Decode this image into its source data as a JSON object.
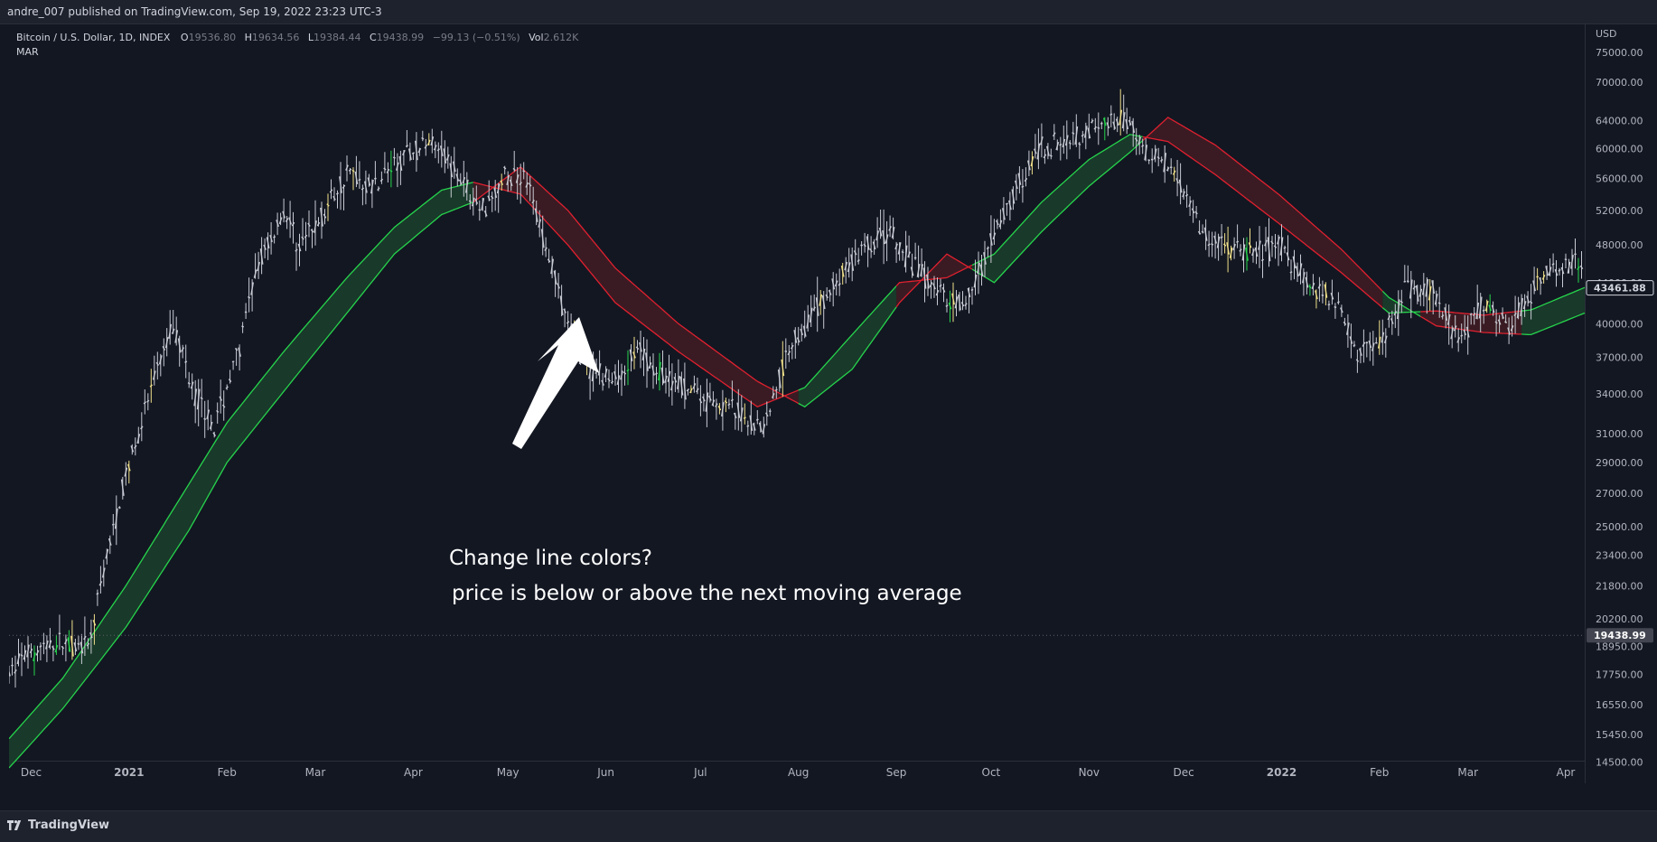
{
  "header": {
    "published": "andre_007 published on TradingView.com, Sep 19, 2022 23:23 UTC-3"
  },
  "legend": {
    "symbol": "Bitcoin / U.S. Dollar, 1D, INDEX",
    "open_label": "O",
    "open": "19536.80",
    "high_label": "H",
    "high": "19634.56",
    "low_label": "L",
    "low": "19384.44",
    "close_label": "C",
    "close": "19438.99",
    "change": "−99.13 (−0.51%)",
    "vol_label": "Vol",
    "vol": "2.612K",
    "indicator": "MAR"
  },
  "annotation": {
    "line1": "Change line colors?",
    "line2": "price is below or above the next moving average"
  },
  "footer": {
    "brand": "TradingView"
  },
  "colors": {
    "bull": "#26d44c",
    "bear": "#e0202f",
    "bull_fill": "#1b3d2b",
    "bear_fill": "#3f1c24",
    "candle": "#c8cbd3",
    "highlight": "#f0e08a",
    "bg": "#131722"
  },
  "chart_data": {
    "type": "line",
    "scale": "log",
    "currency": "USD",
    "last_price": "19438.99",
    "ma_price": "43461.88",
    "y_ticks": [
      "75000.00",
      "70000.00",
      "64000.00",
      "60000.00",
      "56000.00",
      "52000.00",
      "48000.00",
      "44000.00",
      "40000.00",
      "37000.00",
      "34000.00",
      "31000.00",
      "29000.00",
      "27000.00",
      "25000.00",
      "23400.00",
      "21800.00",
      "20200.00",
      "18950.00",
      "17750.00",
      "16550.00",
      "15450.00",
      "14500.00"
    ],
    "x_ticks": [
      "Dec",
      "2021",
      "Feb",
      "Mar",
      "Apr",
      "May",
      "Jun",
      "Jul",
      "Aug",
      "Sep",
      "Oct",
      "Nov",
      "Dec",
      "2022",
      "Feb",
      "Mar",
      "Apr"
    ],
    "x_tick_positions_days": [
      0,
      31,
      62,
      90,
      121,
      151,
      182,
      212,
      243,
      274,
      304,
      335,
      365,
      396,
      427,
      455,
      486
    ],
    "x_range_days": [
      -7,
      492
    ],
    "y_range": [
      13800,
      80000
    ],
    "price_path": [
      {
        "d": -7,
        "p": 17800
      },
      {
        "d": 0,
        "p": 18800
      },
      {
        "d": 10,
        "p": 19100
      },
      {
        "d": 18,
        "p": 18800
      },
      {
        "d": 24,
        "p": 23400
      },
      {
        "d": 31,
        "p": 29000
      },
      {
        "d": 40,
        "p": 36000
      },
      {
        "d": 45,
        "p": 40000
      },
      {
        "d": 52,
        "p": 34000
      },
      {
        "d": 58,
        "p": 31500
      },
      {
        "d": 66,
        "p": 38000
      },
      {
        "d": 72,
        "p": 46000
      },
      {
        "d": 80,
        "p": 52000
      },
      {
        "d": 85,
        "p": 48000
      },
      {
        "d": 90,
        "p": 50000
      },
      {
        "d": 100,
        "p": 57000
      },
      {
        "d": 108,
        "p": 55000
      },
      {
        "d": 118,
        "p": 59000
      },
      {
        "d": 128,
        "p": 61500
      },
      {
        "d": 135,
        "p": 56500
      },
      {
        "d": 142,
        "p": 52000
      },
      {
        "d": 150,
        "p": 56000
      },
      {
        "d": 156,
        "p": 57000
      },
      {
        "d": 162,
        "p": 49000
      },
      {
        "d": 170,
        "p": 40000
      },
      {
        "d": 176,
        "p": 36000
      },
      {
        "d": 184,
        "p": 35000
      },
      {
        "d": 192,
        "p": 37500
      },
      {
        "d": 200,
        "p": 35500
      },
      {
        "d": 210,
        "p": 34000
      },
      {
        "d": 220,
        "p": 33000
      },
      {
        "d": 232,
        "p": 31500
      },
      {
        "d": 240,
        "p": 38000
      },
      {
        "d": 250,
        "p": 42000
      },
      {
        "d": 262,
        "p": 47000
      },
      {
        "d": 272,
        "p": 49500
      },
      {
        "d": 278,
        "p": 46000
      },
      {
        "d": 288,
        "p": 43000
      },
      {
        "d": 296,
        "p": 42000
      },
      {
        "d": 304,
        "p": 48000
      },
      {
        "d": 312,
        "p": 55000
      },
      {
        "d": 320,
        "p": 60000
      },
      {
        "d": 330,
        "p": 62000
      },
      {
        "d": 340,
        "p": 63000
      },
      {
        "d": 348,
        "p": 64500
      },
      {
        "d": 352,
        "p": 60000
      },
      {
        "d": 362,
        "p": 57000
      },
      {
        "d": 372,
        "p": 49000
      },
      {
        "d": 384,
        "p": 47000
      },
      {
        "d": 396,
        "p": 48000
      },
      {
        "d": 404,
        "p": 44000
      },
      {
        "d": 414,
        "p": 42000
      },
      {
        "d": 420,
        "p": 37500
      },
      {
        "d": 428,
        "p": 38500
      },
      {
        "d": 436,
        "p": 43500
      },
      {
        "d": 444,
        "p": 43000
      },
      {
        "d": 452,
        "p": 38500
      },
      {
        "d": 460,
        "p": 42000
      },
      {
        "d": 468,
        "p": 39500
      },
      {
        "d": 476,
        "p": 43500
      },
      {
        "d": 484,
        "p": 46000
      },
      {
        "d": 492,
        "p": 46000
      }
    ],
    "ma_fast": [
      {
        "d": -7,
        "p": 15300
      },
      {
        "d": 10,
        "p": 17600
      },
      {
        "d": 30,
        "p": 21800
      },
      {
        "d": 50,
        "p": 27600
      },
      {
        "d": 62,
        "p": 31800
      },
      {
        "d": 80,
        "p": 37500
      },
      {
        "d": 100,
        "p": 44500
      },
      {
        "d": 115,
        "p": 50000
      },
      {
        "d": 130,
        "p": 54500
      },
      {
        "d": 140,
        "p": 55500
      },
      {
        "d": 155,
        "p": 54000
      },
      {
        "d": 170,
        "p": 48000
      },
      {
        "d": 185,
        "p": 42000
      },
      {
        "d": 205,
        "p": 37500
      },
      {
        "d": 230,
        "p": 33000
      },
      {
        "d": 245,
        "p": 34500
      },
      {
        "d": 260,
        "p": 39000
      },
      {
        "d": 275,
        "p": 44000
      },
      {
        "d": 290,
        "p": 44500
      },
      {
        "d": 305,
        "p": 47000
      },
      {
        "d": 320,
        "p": 53000
      },
      {
        "d": 335,
        "p": 58500
      },
      {
        "d": 348,
        "p": 62000
      },
      {
        "d": 360,
        "p": 61000
      },
      {
        "d": 375,
        "p": 56500
      },
      {
        "d": 395,
        "p": 50500
      },
      {
        "d": 415,
        "p": 45000
      },
      {
        "d": 430,
        "p": 41000
      },
      {
        "d": 445,
        "p": 41200
      },
      {
        "d": 460,
        "p": 40800
      },
      {
        "d": 475,
        "p": 41300
      },
      {
        "d": 492,
        "p": 43500
      }
    ],
    "ma_slow": [
      {
        "d": -7,
        "p": 14300
      },
      {
        "d": 10,
        "p": 16400
      },
      {
        "d": 30,
        "p": 19800
      },
      {
        "d": 50,
        "p": 24800
      },
      {
        "d": 62,
        "p": 29000
      },
      {
        "d": 80,
        "p": 34200
      },
      {
        "d": 100,
        "p": 41000
      },
      {
        "d": 115,
        "p": 47000
      },
      {
        "d": 130,
        "p": 51500
      },
      {
        "d": 140,
        "p": 53000
      },
      {
        "d": 155,
        "p": 57500
      },
      {
        "d": 170,
        "p": 52000
      },
      {
        "d": 185,
        "p": 45500
      },
      {
        "d": 205,
        "p": 40000
      },
      {
        "d": 230,
        "p": 35000
      },
      {
        "d": 245,
        "p": 33000
      },
      {
        "d": 260,
        "p": 36000
      },
      {
        "d": 275,
        "p": 42000
      },
      {
        "d": 290,
        "p": 47000
      },
      {
        "d": 305,
        "p": 44000
      },
      {
        "d": 320,
        "p": 49500
      },
      {
        "d": 335,
        "p": 55000
      },
      {
        "d": 348,
        "p": 59500
      },
      {
        "d": 360,
        "p": 64500
      },
      {
        "d": 375,
        "p": 60500
      },
      {
        "d": 395,
        "p": 54000
      },
      {
        "d": 415,
        "p": 47500
      },
      {
        "d": 430,
        "p": 42500
      },
      {
        "d": 445,
        "p": 39800
      },
      {
        "d": 460,
        "p": 39200
      },
      {
        "d": 475,
        "p": 39000
      },
      {
        "d": 492,
        "p": 41000
      }
    ],
    "ma_bands": [
      {
        "from": -7,
        "to": 140,
        "state": "bull"
      },
      {
        "from": 140,
        "to": 243,
        "state": "bear"
      },
      {
        "from": 243,
        "to": 274,
        "state": "bull"
      },
      {
        "from": 274,
        "to": 298,
        "state": "bear"
      },
      {
        "from": 298,
        "to": 352,
        "state": "bull"
      },
      {
        "from": 352,
        "to": 428,
        "state": "bear"
      },
      {
        "from": 428,
        "to": 440,
        "state": "bull"
      },
      {
        "from": 440,
        "to": 472,
        "state": "bear"
      },
      {
        "from": 472,
        "to": 492,
        "state": "bull"
      }
    ]
  }
}
